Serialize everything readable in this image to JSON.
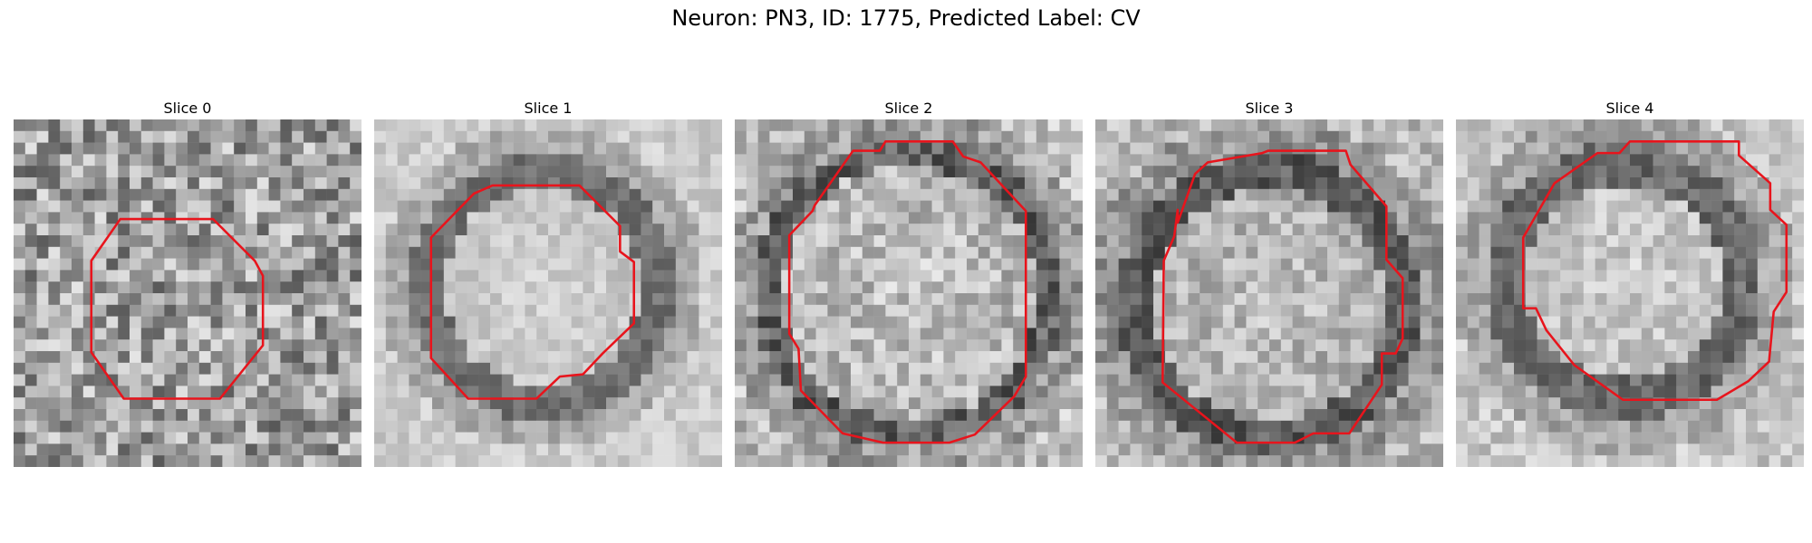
{
  "figure": {
    "title": "Neuron: PN3, ID: 1775, Predicted Label: CV"
  },
  "contour_color": "#e8141c",
  "colormap": "grayscale",
  "slices": [
    {
      "label": "Slice 0"
    },
    {
      "label": "Slice 1"
    },
    {
      "label": "Slice 2"
    },
    {
      "label": "Slice 3"
    },
    {
      "label": "Slice 4"
    }
  ]
}
